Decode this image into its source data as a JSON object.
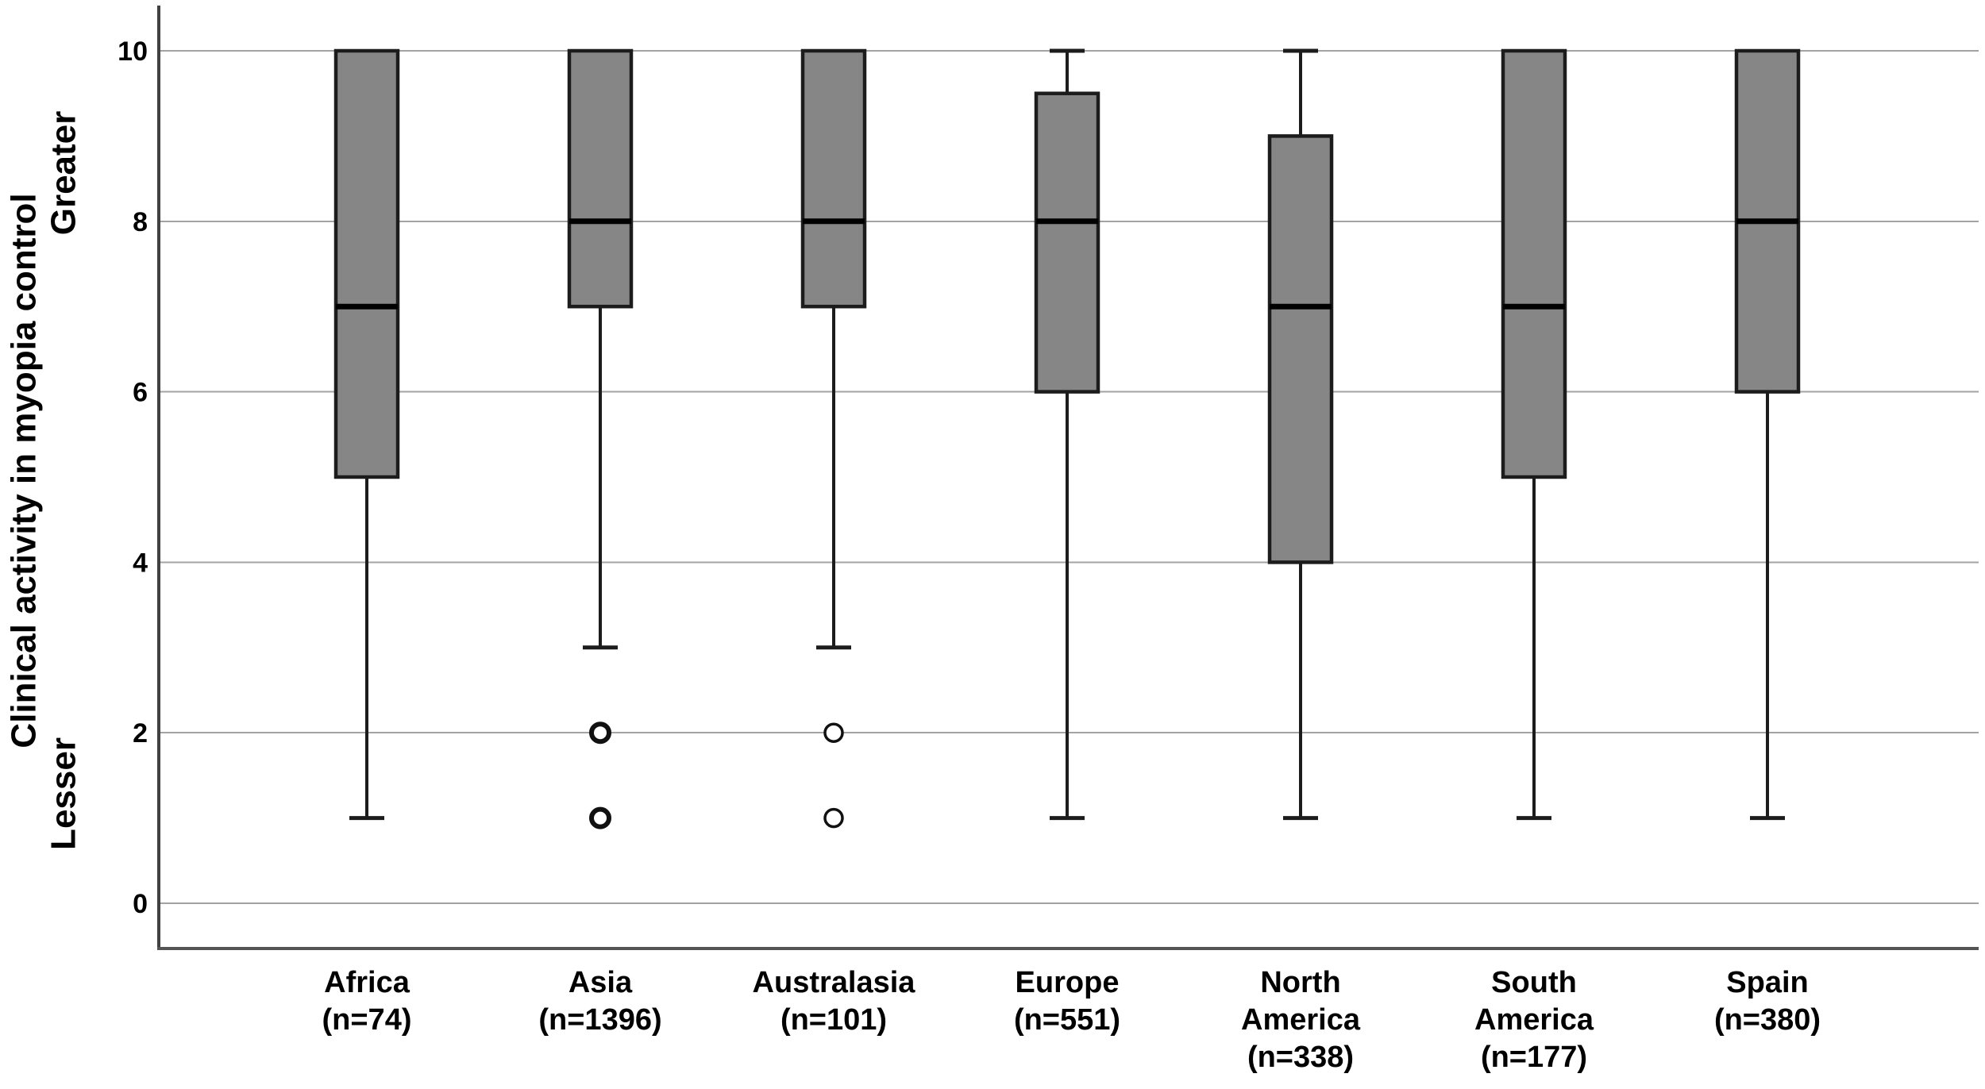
{
  "chart_data": {
    "type": "boxplot",
    "title": "",
    "ylabel": "Clinical activity in myopia control",
    "y_annotation_top": "Greater",
    "y_annotation_bottom": "Lesser",
    "xlabel": "",
    "ylim": [
      0,
      10
    ],
    "yticks": [
      0,
      2,
      4,
      6,
      8,
      10
    ],
    "grid": "horizontal",
    "legend": "none",
    "categories": [
      {
        "name": "Africa",
        "n": 74,
        "label_lines": [
          "Africa",
          "(n=74)"
        ]
      },
      {
        "name": "Asia",
        "n": 1396,
        "label_lines": [
          "Asia",
          "(n=1396)"
        ]
      },
      {
        "name": "Australasia",
        "n": 101,
        "label_lines": [
          "Australasia",
          "(n=101)"
        ]
      },
      {
        "name": "Europe",
        "n": 551,
        "label_lines": [
          "Europe",
          "(n=551)"
        ]
      },
      {
        "name": "North America",
        "n": 338,
        "label_lines": [
          "North",
          "America",
          "(n=338)"
        ]
      },
      {
        "name": "South America",
        "n": 177,
        "label_lines": [
          "South",
          "America",
          "(n=177)"
        ]
      },
      {
        "name": "Spain",
        "n": 380,
        "label_lines": [
          "Spain",
          "(n=380)"
        ]
      }
    ],
    "boxes": [
      {
        "category": "Africa",
        "q1": 5,
        "median": 7,
        "q3": 10,
        "whisker_low": 1,
        "whisker_high": 10,
        "outliers": [],
        "outlier_emphasis": "normal"
      },
      {
        "category": "Asia",
        "q1": 7,
        "median": 8,
        "q3": 10,
        "whisker_low": 3,
        "whisker_high": 10,
        "outliers": [
          2,
          1
        ],
        "outlier_emphasis": "bold"
      },
      {
        "category": "Australasia",
        "q1": 7,
        "median": 8,
        "q3": 10,
        "whisker_low": 3,
        "whisker_high": 10,
        "outliers": [
          2,
          1
        ],
        "outlier_emphasis": "normal"
      },
      {
        "category": "Europe",
        "q1": 6,
        "median": 8,
        "q3": 9.5,
        "whisker_low": 1,
        "whisker_high": 10,
        "outliers": [],
        "outlier_emphasis": "normal"
      },
      {
        "category": "North America",
        "q1": 4,
        "median": 7,
        "q3": 9,
        "whisker_low": 1,
        "whisker_high": 10,
        "outliers": [],
        "outlier_emphasis": "normal"
      },
      {
        "category": "South America",
        "q1": 5,
        "median": 7,
        "q3": 10,
        "whisker_low": 1,
        "whisker_high": 10,
        "outliers": [],
        "outlier_emphasis": "normal"
      },
      {
        "category": "Spain",
        "q1": 6,
        "median": 8,
        "q3": 10,
        "whisker_low": 1,
        "whisker_high": 10,
        "outliers": [],
        "outlier_emphasis": "normal"
      }
    ],
    "colors": {
      "background": "#ffffff",
      "box_fill": "#868686",
      "box_stroke": "#1c1c1c",
      "median": "#000000",
      "whisker": "#1c1c1c",
      "outlier_stroke": "#111111",
      "grid": "#a3a3a3",
      "axis": "#404040",
      "frame": "#545454",
      "text": "#000000"
    }
  }
}
